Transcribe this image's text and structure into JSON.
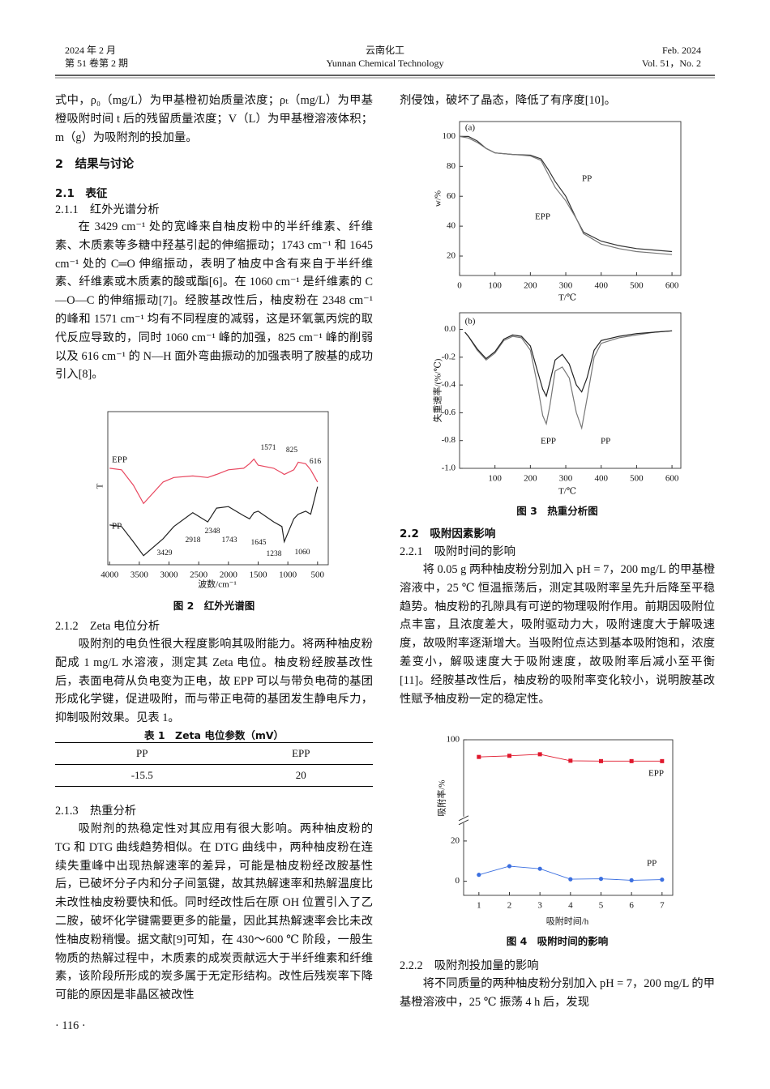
{
  "header": {
    "left": [
      "2024 年 2 月",
      "第 51 卷第 2 期"
    ],
    "center": [
      "云南化工",
      "Yunnan Chemical Technology"
    ],
    "right": [
      "Feb. 2024",
      "Vol. 51，No. 2"
    ]
  },
  "headings": [
    "2　结果与讨论",
    "2.1　表征",
    "2.1.1　红外光谱分析",
    "2.1.2　Zeta 电位分析",
    "2.1.3　热重分析",
    "2.2　吸附因素影响",
    "2.2.1　吸附时间的影响",
    "2.2.2　吸附剂投加量的影响"
  ],
  "paragraphs": [
    "式中，ρ₀（mg/L）为甲基橙初始质量浓度；ρₜ（mg/L）为甲基橙吸附时间 t 后的残留质量浓度；V（L）为甲基橙溶液体积；m（g）为吸附剂的投加量。",
    "在 3429 cm⁻¹ 处的宽峰来自柚皮粉中的半纤维素、纤维素、木质素等多糖中羟基引起的伸缩振动；1743 cm⁻¹ 和 1645 cm⁻¹ 处的 C═O 伸缩振动，表明了柚皮中含有来自于半纤维素、纤维素或木质素的酸或酯[6]。在 1060 cm⁻¹ 是纤维素的 C—O—C 的伸缩振动[7]。经胺基改性后，柚皮粉在 2348 cm⁻¹ 的峰和 1571 cm⁻¹ 均有不同程度的减弱，这是环氧氯丙烷的取代反应导致的，同时 1060 cm⁻¹ 峰的加强，825 cm⁻¹ 峰的削弱以及 616 cm⁻¹ 的 N—H 面外弯曲振动的加强表明了胺基的成功引入[8]。",
    "吸附剂的电负性很大程度影响其吸附能力。将两种柚皮粉配成 1 mg/L 水溶液，测定其 Zeta 电位。柚皮粉经胺基改性后，表面电荷从负电变为正电，故 EPP 可以与带负电荷的基团形成化学键，促进吸附，而与带正电荷的基团发生静电斥力，抑制吸附效果。见表 1。",
    "吸附剂的热稳定性对其应用有很大影响。两种柚皮粉的 TG 和 DTG 曲线趋势相似。在 DTG 曲线中，两种柚皮粉在连续失重峰中出现热解速率的差异，可能是柚皮粉经改胺基性后，已破坏分子内和分子间氢键，故其热解速率和热解温度比未改性柚皮粉要快和低。同时经改性后在原 OH 位置引入了乙二胺，破坏化学键需要更多的能量，因此其热解速率会比未改性柚皮粉稍慢。据文献[9]可知，在 430～600 ℃ 阶段，一般生物质的热解过程中，木质素的成炭贡献远大于半纤维素和纤维素，该阶段所形成的炭多属于无定形结构。改性后残炭率下降可能的原因是非晶区被改性",
    "剂侵蚀，破坏了晶态，降低了有序度[10]。",
    "将 0.05 g 两种柚皮粉分别加入 pH = 7，200 mg/L 的甲基橙溶液中，25 ℃ 恒温振荡后，测定其吸附率呈先升后降至平稳趋势。柚皮粉的孔隙具有可逆的物理吸附作用。前期因吸附位点丰富，且浓度差大，吸附驱动力大，吸附速度大于解吸速度，故吸附率逐渐增大。当吸附位点达到基本吸附饱和，浓度差变小，解吸速度大于吸附速度，故吸附率后减小至平衡[11]。经胺基改性后，柚皮粉的吸附率变化较小，说明胺基改性赋予柚皮粉一定的稳定性。",
    "将不同质量的两种柚皮粉分别加入 pH = 7，200 mg/L 的甲基橙溶液中，25 ℃ 振荡 4 h 后，发现"
  ],
  "table": {
    "caption": "表 1　Zeta 电位参数（mV）",
    "columns": [
      "PP",
      "EPP"
    ],
    "rows": [
      [
        -15.5,
        20
      ]
    ]
  },
  "figure_captions": [
    "图 2　红外光谱图",
    "图 3　热重分析图",
    "图 4　吸附时间的影响"
  ],
  "page_number": "· 116 ·",
  "chart_data": [
    {
      "type": "line",
      "xlabel": "波数/cm⁻¹",
      "ylabel": "T",
      "xlim": [
        4030,
        320
      ],
      "ylim": [
        0,
        100
      ],
      "xticks": [
        4000,
        3500,
        3000,
        2500,
        2000,
        1500,
        1000,
        500
      ],
      "x": [
        4000,
        3800,
        3600,
        3429,
        3100,
        2918,
        2600,
        2348,
        2200,
        2000,
        1743,
        1645,
        1571,
        1500,
        1238,
        1100,
        1060,
        900,
        825,
        700,
        616,
        500
      ],
      "series": [
        {
          "name": "EPP",
          "color": "#e8475f",
          "values": [
            63,
            62,
            52,
            40,
            54,
            57,
            58,
            57,
            59,
            62,
            63,
            66,
            69,
            65,
            63,
            60,
            59,
            62,
            67,
            66,
            62,
            54
          ]
        },
        {
          "name": "PP",
          "color": "#222222",
          "values": [
            26,
            25,
            15,
            6,
            17,
            25,
            34,
            28,
            37,
            38,
            32,
            30,
            34,
            35,
            28,
            25,
            15,
            30,
            33,
            35,
            33,
            51
          ]
        }
      ],
      "peak_labels": [
        3429,
        2918,
        2348,
        1743,
        1645,
        1238,
        1060,
        1571,
        825,
        616
      ]
    },
    {
      "type": "line",
      "panel": "(a)",
      "xlabel": "T/℃",
      "ylabel": "w/%",
      "xlim": [
        0,
        625
      ],
      "ylim": [
        7,
        110
      ],
      "xticks": [
        0,
        100,
        200,
        300,
        400,
        500,
        600
      ],
      "yticks": [
        20,
        40,
        60,
        80,
        100
      ],
      "x": [
        0,
        25,
        50,
        75,
        100,
        150,
        200,
        230,
        250,
        270,
        300,
        330,
        350,
        400,
        450,
        500,
        550,
        600
      ],
      "series": [
        {
          "name": "PP",
          "color": "#333333",
          "values": [
            100,
            100,
            97,
            92,
            89,
            88,
            87.5,
            85,
            78,
            70,
            60,
            45,
            36,
            30,
            27,
            25,
            24,
            23
          ]
        },
        {
          "name": "EPP",
          "color": "#777777",
          "values": [
            100,
            99,
            96,
            92,
            89,
            88,
            87,
            84,
            75,
            66,
            57,
            45,
            35,
            28,
            25,
            23,
            22,
            21
          ]
        }
      ]
    },
    {
      "type": "line",
      "panel": "(b)",
      "xlabel": "T/℃",
      "ylabel": "失重速率/(%/℃)",
      "xlim": [
        0,
        625
      ],
      "ylim": [
        -1.0,
        0.12
      ],
      "xticks": [
        100,
        200,
        300,
        400,
        500,
        600
      ],
      "yticks": [
        {
          "value": 0,
          "label": "0.0"
        },
        -0.2,
        -0.4,
        -0.6,
        -0.8,
        {
          "value": -1,
          "label": "-1.0"
        }
      ],
      "x": [
        15,
        25,
        50,
        75,
        100,
        125,
        150,
        175,
        200,
        220,
        235,
        245,
        255,
        270,
        290,
        310,
        330,
        345,
        360,
        380,
        400,
        450,
        500,
        550,
        600
      ],
      "series": [
        {
          "name": "EPP",
          "color": "#777777",
          "values": [
            -0.02,
            -0.05,
            -0.15,
            -0.22,
            -0.17,
            -0.08,
            -0.05,
            -0.06,
            -0.15,
            -0.4,
            -0.62,
            -0.68,
            -0.55,
            -0.3,
            -0.27,
            -0.35,
            -0.6,
            -0.71,
            -0.5,
            -0.2,
            -0.1,
            -0.06,
            -0.04,
            -0.02,
            -0.01
          ]
        },
        {
          "name": "PP",
          "color": "#222222",
          "values": [
            -0.02,
            -0.05,
            -0.14,
            -0.21,
            -0.16,
            -0.07,
            -0.04,
            -0.05,
            -0.12,
            -0.3,
            -0.43,
            -0.48,
            -0.38,
            -0.22,
            -0.18,
            -0.25,
            -0.4,
            -0.45,
            -0.35,
            -0.15,
            -0.08,
            -0.05,
            -0.03,
            -0.02,
            -0.01
          ]
        }
      ]
    },
    {
      "type": "line",
      "xlabel": "吸附时间/h",
      "ylabel": "吸附率/%",
      "xlim": [
        0.5,
        7.35
      ],
      "ylim": [
        -7,
        100
      ],
      "axis_break": [
        27,
        80
      ],
      "xticks": [
        1,
        2,
        3,
        4,
        5,
        6,
        7
      ],
      "yticks": [
        0,
        20,
        100
      ],
      "x": [
        1,
        2,
        3,
        4,
        5,
        6,
        7
      ],
      "series": [
        {
          "name": "EPP",
          "color": "#e0182d",
          "marker": "square",
          "values": [
            95.5,
            95.8,
            96.2,
            94.5,
            94.4,
            94.4,
            94.4
          ]
        },
        {
          "name": "PP",
          "color": "#3b6fe0",
          "marker": "circle",
          "values": [
            3.2,
            7.5,
            6.2,
            1.0,
            1.2,
            0.5,
            0.8
          ]
        }
      ]
    }
  ]
}
